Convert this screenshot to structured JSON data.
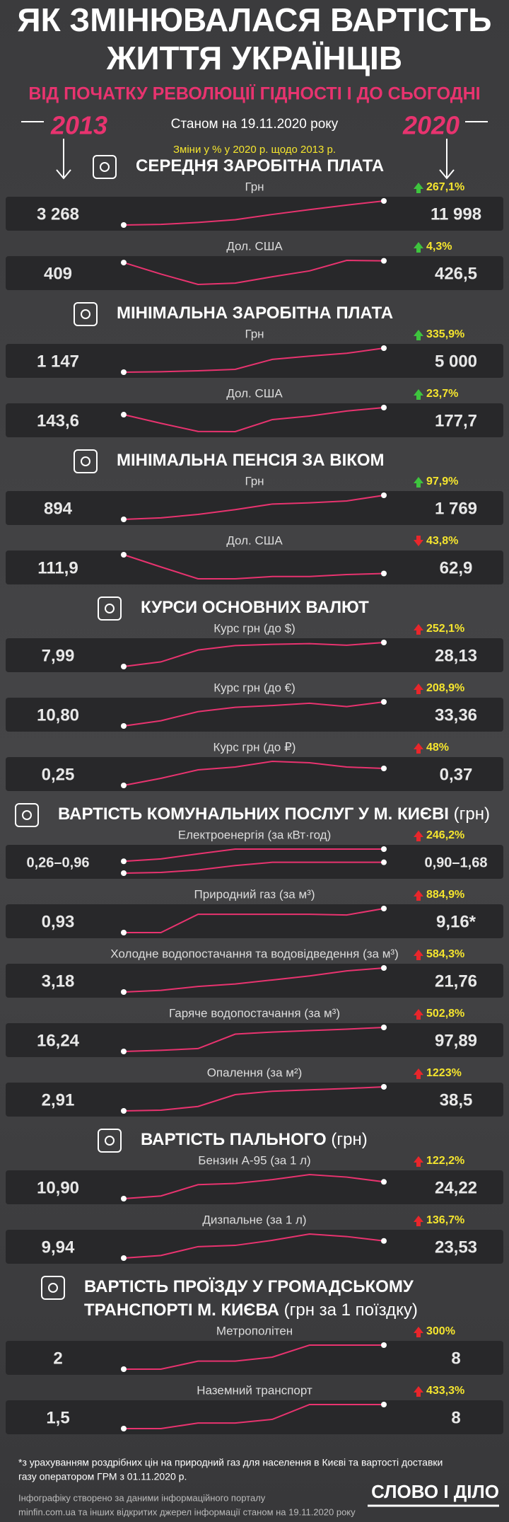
{
  "header": {
    "title_lines": [
      "ЯК ЗМІНЮВАЛАСЯ ВАРТІСТЬ",
      "ЖИТТЯ УКРАЇНЦІВ"
    ],
    "subtitle": "ВІД ПОЧАТКУ РЕВОЛЮЦІЇ ГІДНОСТІ І ДО СЬОГОДНІ",
    "start_year": "2013",
    "end_year": "2020",
    "as_of": "Станом на 19.11.2020 року",
    "change_note": "Зміни у % у 2020 р. щодо 2013 р."
  },
  "line_color": "#e8336f",
  "sections": [
    {
      "title_lines": [
        "СЕРЕДНЯ ЗАРОБІТНА ПЛАТА"
      ],
      "rows": [
        {
          "label": "Грн",
          "start": "3 268",
          "end": "11 998",
          "change": "267,1%",
          "arrow": "up",
          "arrow_color": "#3ec43e",
          "series": [
            [
              3268,
              3480,
              4195,
              5183,
              7104,
              8865,
              10497,
              11998
            ]
          ]
        },
        {
          "label": "Дол. США",
          "start": "409",
          "end": "426,5",
          "change": "4,3%",
          "arrow": "up",
          "arrow_color": "#3ec43e",
          "series": [
            [
              409,
              294,
              190,
              203,
              267,
              326,
              431,
              426.5
            ]
          ]
        }
      ]
    },
    {
      "title_lines": [
        "МІНІМАЛЬНА ЗАРОБІТНА ПЛАТА"
      ],
      "rows": [
        {
          "label": "Грн",
          "start": "1 147",
          "end": "5 000",
          "change": "335,9%",
          "arrow": "up",
          "arrow_color": "#3ec43e",
          "series": [
            [
              1147,
              1218,
              1378,
              1600,
              3200,
              3723,
              4173,
              5000
            ]
          ]
        },
        {
          "label": "Дол. США",
          "start": "143,6",
          "end": "177,7",
          "change": "23,7%",
          "arrow": "up",
          "arrow_color": "#3ec43e",
          "series": [
            [
              143.6,
              102,
              63,
              62,
              120,
              137,
              161,
              177.7
            ]
          ]
        }
      ]
    },
    {
      "title_lines": [
        "МІНІМАЛЬНА ПЕНСІЯ ЗА ВІКОМ"
      ],
      "rows": [
        {
          "label": "Грн",
          "start": "894",
          "end": "1 769",
          "change": "97,9%",
          "arrow": "up",
          "arrow_color": "#3ec43e",
          "series": [
            [
              894,
              949,
              1074,
              1247,
              1452,
              1497,
              1564,
              1769
            ]
          ]
        },
        {
          "label": "Дол. США",
          "start": "111,9",
          "end": "62,9",
          "change": "43,8%",
          "arrow": "down",
          "arrow_color": "#e8262b",
          "series": [
            [
              111.9,
              80,
              49,
              49,
              55,
              55,
              60,
              62.9
            ]
          ]
        }
      ]
    },
    {
      "title_lines": [
        "КУРСИ ОСНОВНИХ ВАЛЮТ"
      ],
      "rows": [
        {
          "label": "Курс грн (до $)",
          "start": "7,99",
          "end": "28,13",
          "change": "252,1%",
          "arrow": "up",
          "arrow_color": "#e8262b",
          "series": [
            [
              7.99,
              11.89,
              21.84,
              25.55,
              26.6,
              27.2,
              25.85,
              28.13
            ]
          ]
        },
        {
          "label": "Курс грн (до €)",
          "start": "10,80",
          "end": "33,36",
          "change": "208,9%",
          "arrow": "up",
          "arrow_color": "#e8262b",
          "series": [
            [
              10.8,
              15.72,
              24.23,
              28.29,
              30.0,
              32.14,
              28.95,
              33.36
            ]
          ]
        },
        {
          "label": "Курс грн (до ₽)",
          "start": "0,25",
          "end": "0,37",
          "change": "48%",
          "arrow": "up",
          "arrow_color": "#e8262b",
          "series": [
            [
              0.25,
              0.3,
              0.36,
              0.38,
              0.42,
              0.41,
              0.38,
              0.37
            ]
          ]
        }
      ]
    },
    {
      "title_lines": [
        "ВАРТІСТЬ КОМУНАЛЬНИХ ПОСЛУГ У М. КИЄВІ"
      ],
      "suffix": "(грн)",
      "rows": [
        {
          "label": "Електроенергія (за кВт·год)",
          "start": "0,26–0,96",
          "end": "0,90–1,68",
          "change": "246,2%",
          "arrow": "up",
          "arrow_color": "#e8262b",
          "series": [
            [
              0.26,
              0.3,
              0.45,
              0.71,
              0.9,
              0.9,
              0.9,
              0.9
            ],
            [
              0.96,
              1.1,
              1.4,
              1.68,
              1.68,
              1.68,
              1.68,
              1.68
            ]
          ]
        },
        {
          "label": "Природний газ (за м³)",
          "start": "0,93",
          "end": "9,16*",
          "change": "884,9%",
          "arrow": "up",
          "arrow_color": "#e8262b",
          "series": [
            [
              0.93,
              0.93,
              7.19,
              7.19,
              7.19,
              7.19,
              6.96,
              9.16
            ]
          ]
        },
        {
          "label": "Холодне водопостачання та водовідведення (за м³)",
          "start": "3,18",
          "end": "21,76",
          "change": "584,3%",
          "arrow": "up",
          "arrow_color": "#e8262b",
          "series": [
            [
              3.18,
              4.5,
              7.5,
              9.4,
              12.5,
              15.6,
              19.5,
              21.76
            ]
          ]
        },
        {
          "label": "Гаряче водопостачання (за м³)",
          "start": "16,24",
          "end": "97,89",
          "change": "502,8%",
          "arrow": "up",
          "arrow_color": "#e8262b",
          "series": [
            [
              16.24,
              20,
              26,
              75,
              82,
              87,
              92,
              97.89
            ]
          ]
        },
        {
          "label": "Опалення (за м²)",
          "start": "2,91",
          "end": "38,5",
          "change": "1223%",
          "arrow": "up",
          "arrow_color": "#e8262b",
          "series": [
            [
              2.91,
              4.0,
              9.5,
              27,
              32,
              34,
              36,
              38.5
            ]
          ]
        }
      ]
    },
    {
      "title_lines": [
        "ВАРТІСТЬ ПАЛЬНОГО"
      ],
      "suffix": "(грн)",
      "rows": [
        {
          "label": "Бензин А-95 (за 1 л)",
          "start": "10,90",
          "end": "24,22",
          "change": "122,2%",
          "arrow": "up",
          "arrow_color": "#e8262b",
          "series": [
            [
              10.9,
              13,
              22,
              23,
              26,
              30,
              28,
              24.22
            ]
          ]
        },
        {
          "label": "Дизпальне (за 1 л)",
          "start": "9,94",
          "end": "23,53",
          "change": "136,7%",
          "arrow": "up",
          "arrow_color": "#e8262b",
          "series": [
            [
              9.94,
              12,
              19,
              20,
              24,
              29,
              27,
              23.53
            ]
          ]
        }
      ]
    },
    {
      "title_lines": [
        "ВАРТІСТЬ ПРОЇЗДУ У ГРОМАДСЬКОМУ",
        "ТРАНСПОРТІ М. КИЄВА"
      ],
      "suffix": "(грн за 1 поїздку)",
      "rows": [
        {
          "label": "Метрополітен",
          "start": "2",
          "end": "8",
          "change": "300%",
          "arrow": "up",
          "arrow_color": "#e8262b",
          "series": [
            [
              2,
              2,
              4,
              4,
              5,
              8,
              8,
              8
            ]
          ]
        },
        {
          "label": "Наземний транспорт",
          "start": "1,5",
          "end": "8",
          "change": "433,3%",
          "arrow": "up",
          "arrow_color": "#e8262b",
          "series": [
            [
              1.5,
              1.5,
              3,
              3,
              4,
              8,
              8,
              8
            ]
          ]
        }
      ]
    }
  ],
  "footer": {
    "note_lines": [
      "*з урахуванням роздрібних цін на природний газ для населення в Києві та вартості доставки",
      "газу оператором ГРМ з 01.11.2020 р."
    ],
    "source_lines": [
      "Інфографіку створено за даними інформаційного порталу",
      "minfin.com.ua та інших відкритих джерел інформації станом на 19.11.2020 року"
    ],
    "logo": "СЛОВО І ДІЛО"
  }
}
